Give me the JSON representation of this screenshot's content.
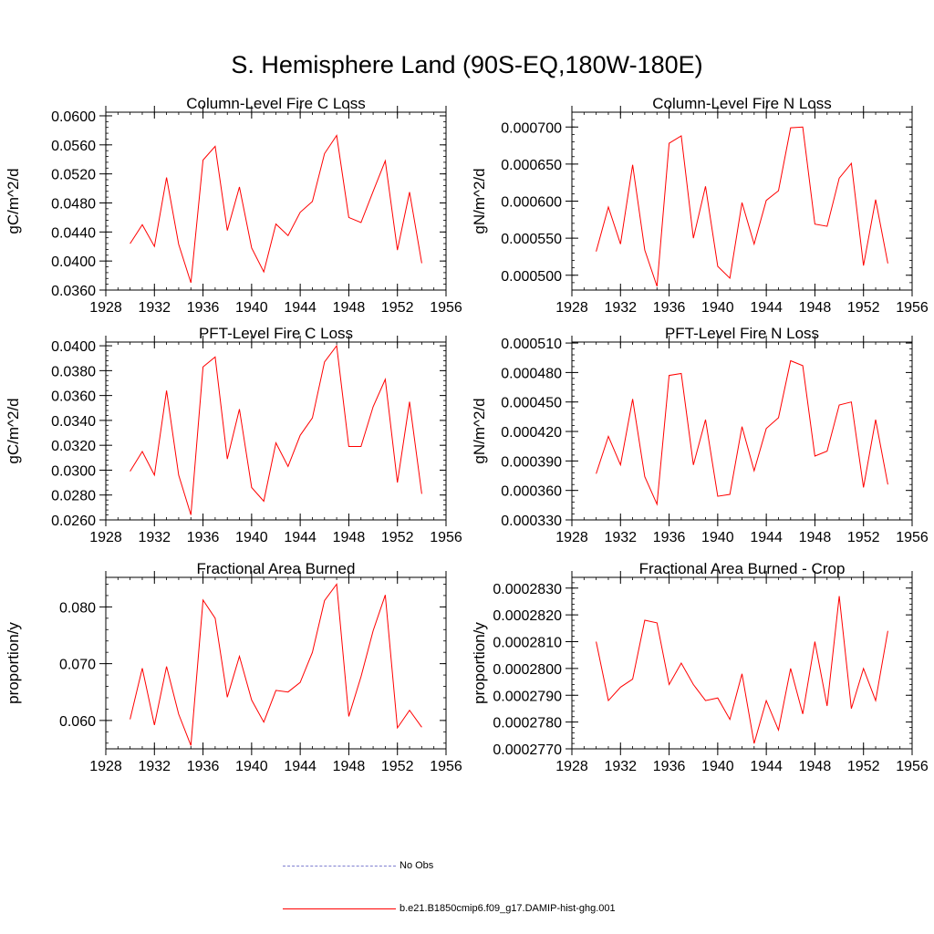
{
  "figure": {
    "title": "S. Hemisphere Land (90S-EQ,180W-180E)",
    "legend": [
      {
        "label": "No Obs",
        "color": "#7f7fd0",
        "style": "dashed"
      },
      {
        "label": "b.e21.B1850cmip6.f09_g17.DAMIP-hist-ghg.001",
        "color": "#ff0000",
        "style": "solid"
      }
    ]
  },
  "chart_data": [
    {
      "type": "line",
      "title": "Column-Level Fire C Loss",
      "ylabel": "gC/m^2/d",
      "xlim": [
        1928,
        1956
      ],
      "ylim": [
        0.036,
        0.0605
      ],
      "xticks": [
        "1928",
        "1932",
        "1936",
        "1940",
        "1944",
        "1948",
        "1952",
        "1956"
      ],
      "yticks": [
        "0.0360",
        "0.0400",
        "0.0440",
        "0.0480",
        "0.0520",
        "0.0560",
        "0.0600"
      ],
      "series": [
        {
          "color": "#ff0000",
          "x": [
            1930,
            1931,
            1932,
            1933,
            1934,
            1935,
            1936,
            1937,
            1938,
            1939,
            1940,
            1941,
            1942,
            1943,
            1944,
            1945,
            1946,
            1947,
            1948,
            1949,
            1950,
            1951,
            1952,
            1953,
            1954
          ],
          "values": [
            0.0424,
            0.045,
            0.042,
            0.0515,
            0.0423,
            0.037,
            0.0539,
            0.0558,
            0.0442,
            0.0502,
            0.0418,
            0.0385,
            0.0451,
            0.0435,
            0.0467,
            0.0482,
            0.0548,
            0.0573,
            0.046,
            0.0453,
            0.0496,
            0.0538,
            0.0415,
            0.0495,
            0.0397
          ]
        }
      ]
    },
    {
      "type": "line",
      "title": "Column-Level Fire N Loss",
      "ylabel": "gN/m^2/d",
      "xlim": [
        1928,
        1956
      ],
      "ylim": [
        0.00048,
        0.00072
      ],
      "xticks": [
        "1928",
        "1932",
        "1936",
        "1940",
        "1944",
        "1948",
        "1952",
        "1956"
      ],
      "yticks": [
        "0.000500",
        "0.000550",
        "0.000600",
        "0.000650",
        "0.000700"
      ],
      "series": [
        {
          "color": "#ff0000",
          "x": [
            1930,
            1931,
            1932,
            1933,
            1934,
            1935,
            1936,
            1937,
            1938,
            1939,
            1940,
            1941,
            1942,
            1943,
            1944,
            1945,
            1946,
            1947,
            1948,
            1949,
            1950,
            1951,
            1952,
            1953,
            1954
          ],
          "values": [
            0.000532,
            0.000592,
            0.000542,
            0.000649,
            0.000534,
            0.000485,
            0.000678,
            0.000688,
            0.00055,
            0.00062,
            0.000512,
            0.000496,
            0.000598,
            0.000542,
            0.000601,
            0.000614,
            0.000699,
            0.0007,
            0.000569,
            0.000566,
            0.000631,
            0.000651,
            0.000513,
            0.000602,
            0.000516
          ]
        }
      ]
    },
    {
      "type": "line",
      "title": "PFT-Level Fire C Loss",
      "ylabel": "gC/m^2/d",
      "xlim": [
        1928,
        1956
      ],
      "ylim": [
        0.026,
        0.0403
      ],
      "xticks": [
        "1928",
        "1932",
        "1936",
        "1940",
        "1944",
        "1948",
        "1952",
        "1956"
      ],
      "yticks": [
        "0.0260",
        "0.0280",
        "0.0300",
        "0.0320",
        "0.0340",
        "0.0360",
        "0.0380",
        "0.0400"
      ],
      "series": [
        {
          "color": "#ff0000",
          "x": [
            1930,
            1931,
            1932,
            1933,
            1934,
            1935,
            1936,
            1937,
            1938,
            1939,
            1940,
            1941,
            1942,
            1943,
            1944,
            1945,
            1946,
            1947,
            1948,
            1949,
            1950,
            1951,
            1952,
            1953,
            1954
          ],
          "values": [
            0.0299,
            0.0315,
            0.0296,
            0.0364,
            0.0296,
            0.0264,
            0.0383,
            0.0391,
            0.0309,
            0.0349,
            0.0286,
            0.0275,
            0.0322,
            0.0303,
            0.0328,
            0.0342,
            0.0387,
            0.04,
            0.0319,
            0.0319,
            0.0351,
            0.0373,
            0.029,
            0.0355,
            0.0281
          ]
        }
      ]
    },
    {
      "type": "line",
      "title": "PFT-Level Fire N Loss",
      "ylabel": "gN/m^2/d",
      "xlim": [
        1928,
        1956
      ],
      "ylim": [
        0.00033,
        0.000511
      ],
      "xticks": [
        "1928",
        "1932",
        "1936",
        "1940",
        "1944",
        "1948",
        "1952",
        "1956"
      ],
      "yticks": [
        "0.000330",
        "0.000360",
        "0.000390",
        "0.000420",
        "0.000450",
        "0.000480",
        "0.000510"
      ],
      "series": [
        {
          "color": "#ff0000",
          "x": [
            1930,
            1931,
            1932,
            1933,
            1934,
            1935,
            1936,
            1937,
            1938,
            1939,
            1940,
            1941,
            1942,
            1943,
            1944,
            1945,
            1946,
            1947,
            1948,
            1949,
            1950,
            1951,
            1952,
            1953,
            1954
          ],
          "values": [
            0.000377,
            0.000415,
            0.000386,
            0.000453,
            0.000374,
            0.000346,
            0.000477,
            0.000479,
            0.000386,
            0.000432,
            0.000354,
            0.000356,
            0.000425,
            0.00038,
            0.000423,
            0.000434,
            0.000492,
            0.000487,
            0.000395,
            0.0004,
            0.000447,
            0.00045,
            0.000363,
            0.000432,
            0.000366
          ]
        }
      ]
    },
    {
      "type": "line",
      "title": "Fractional Area Burned",
      "ylabel": "proportion/y",
      "xlim": [
        1928,
        1956
      ],
      "ylim": [
        0.055,
        0.0852
      ],
      "xticks": [
        "1928",
        "1932",
        "1936",
        "1940",
        "1944",
        "1948",
        "1952",
        "1956"
      ],
      "yticks": [
        "0.060",
        "0.070",
        "0.080"
      ],
      "series": [
        {
          "color": "#ff0000",
          "x": [
            1930,
            1931,
            1932,
            1933,
            1934,
            1935,
            1936,
            1937,
            1938,
            1939,
            1940,
            1941,
            1942,
            1943,
            1944,
            1945,
            1946,
            1947,
            1948,
            1949,
            1950,
            1951,
            1952,
            1953,
            1954
          ],
          "values": [
            0.0602,
            0.0692,
            0.0592,
            0.0695,
            0.0611,
            0.0556,
            0.0812,
            0.078,
            0.0641,
            0.0713,
            0.0636,
            0.0597,
            0.0653,
            0.065,
            0.0667,
            0.072,
            0.0811,
            0.084,
            0.0607,
            0.0677,
            0.0758,
            0.0821,
            0.0587,
            0.0618,
            0.0588
          ]
        }
      ]
    },
    {
      "type": "line",
      "title": "Fractional Area Burned - Crop",
      "ylabel": "proportion/y",
      "xlim": [
        1928,
        1956
      ],
      "ylim": [
        0.000277,
        0.0002834
      ],
      "xticks": [
        "1928",
        "1932",
        "1936",
        "1940",
        "1944",
        "1948",
        "1952",
        "1956"
      ],
      "yticks": [
        "0.0002770",
        "0.0002780",
        "0.0002790",
        "0.0002800",
        "0.0002810",
        "0.0002820",
        "0.0002830"
      ],
      "series": [
        {
          "color": "#ff0000",
          "x": [
            1930,
            1931,
            1932,
            1933,
            1934,
            1935,
            1936,
            1937,
            1938,
            1939,
            1940,
            1941,
            1942,
            1943,
            1944,
            1945,
            1946,
            1947,
            1948,
            1949,
            1950,
            1951,
            1952,
            1953,
            1954
          ],
          "values": [
            0.000281,
            0.0002788,
            0.0002793,
            0.0002796,
            0.0002818,
            0.0002817,
            0.0002794,
            0.0002802,
            0.0002794,
            0.0002788,
            0.0002789,
            0.0002781,
            0.0002798,
            0.0002772,
            0.0002788,
            0.0002777,
            0.00028,
            0.0002783,
            0.000281,
            0.0002786,
            0.0002827,
            0.0002785,
            0.00028,
            0.0002788,
            0.0002814
          ]
        }
      ]
    }
  ]
}
